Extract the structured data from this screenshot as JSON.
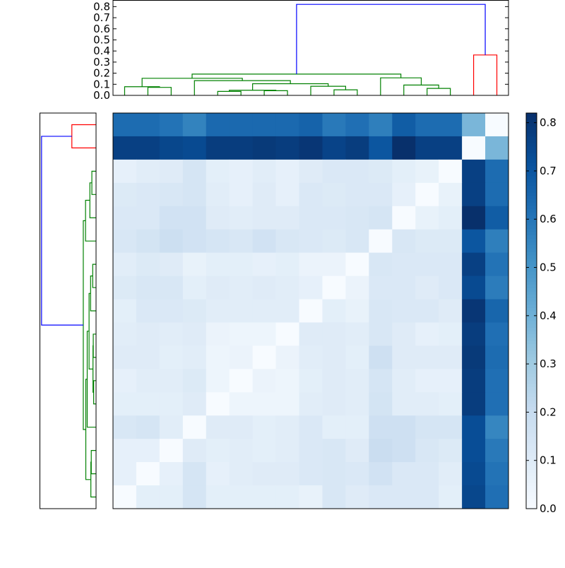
{
  "chart_data": {
    "type": "heatmap",
    "title": "",
    "colormap": "Blues",
    "vmin": 0.0,
    "vmax": 0.82,
    "colorbar_ticks": [
      "0.0",
      "0.1",
      "0.2",
      "0.3",
      "0.4",
      "0.5",
      "0.6",
      "0.7",
      "0.8"
    ],
    "dendrogram_ticks": [
      "0.0",
      "0.1",
      "0.2",
      "0.3",
      "0.4",
      "0.5",
      "0.6",
      "0.7",
      "0.8"
    ],
    "dendrogram_ylim": [
      0,
      0.85
    ],
    "dendrogram_colors": {
      "cluster1": "#008000",
      "cluster2": "#ff0000",
      "above_threshold": "#0000ff"
    },
    "dendrogram_links": [
      {
        "x": [
          1,
          2
        ],
        "child_h": [
          0,
          0
        ],
        "h": 0.072,
        "c": "cluster1"
      },
      {
        "x": [
          0,
          1.5
        ],
        "child_h": [
          0,
          0.072
        ],
        "h": 0.078,
        "c": "cluster1"
      },
      {
        "x": [
          4,
          5
        ],
        "child_h": [
          0,
          0
        ],
        "h": 0.036,
        "c": "cluster1"
      },
      {
        "x": [
          6,
          7
        ],
        "child_h": [
          0,
          0
        ],
        "h": 0.042,
        "c": "cluster1"
      },
      {
        "x": [
          4.5,
          6.5
        ],
        "child_h": [
          0.036,
          0.042
        ],
        "h": 0.046,
        "c": "cluster1"
      },
      {
        "x": [
          9,
          10
        ],
        "child_h": [
          0,
          0
        ],
        "h": 0.05,
        "c": "cluster1"
      },
      {
        "x": [
          8,
          9.5
        ],
        "child_h": [
          0,
          0.05
        ],
        "h": 0.082,
        "c": "cluster1"
      },
      {
        "x": [
          5.5,
          8.75
        ],
        "child_h": [
          0.046,
          0.082
        ],
        "h": 0.105,
        "c": "cluster1"
      },
      {
        "x": [
          3,
          7.125
        ],
        "child_h": [
          0,
          0.105
        ],
        "h": 0.133,
        "c": "cluster1"
      },
      {
        "x": [
          0.75,
          5.06
        ],
        "child_h": [
          0.078,
          0.133
        ],
        "h": 0.154,
        "c": "cluster1"
      },
      {
        "x": [
          13,
          14
        ],
        "child_h": [
          0,
          0
        ],
        "h": 0.063,
        "c": "cluster1"
      },
      {
        "x": [
          12,
          13.5
        ],
        "child_h": [
          0,
          0.063
        ],
        "h": 0.093,
        "c": "cluster1"
      },
      {
        "x": [
          11,
          12.75
        ],
        "child_h": [
          0,
          0.093
        ],
        "h": 0.158,
        "c": "cluster1"
      },
      {
        "x": [
          2.9,
          11.875
        ],
        "child_h": [
          0.154,
          0.158
        ],
        "h": 0.192,
        "c": "cluster1"
      },
      {
        "x": [
          15,
          16
        ],
        "child_h": [
          0,
          0
        ],
        "h": 0.364,
        "c": "cluster2"
      },
      {
        "x": [
          7.39,
          15.5
        ],
        "child_h": [
          0.192,
          0.364
        ],
        "h": 0.82,
        "c": "above_threshold"
      }
    ],
    "matrix": [
      [
        0.63,
        0.63,
        0.61,
        0.56,
        0.64,
        0.64,
        0.64,
        0.64,
        0.66,
        0.59,
        0.62,
        0.57,
        0.68,
        0.63,
        0.63,
        0.38,
        0.0
      ],
      [
        0.77,
        0.77,
        0.75,
        0.74,
        0.78,
        0.78,
        0.79,
        0.78,
        0.8,
        0.76,
        0.78,
        0.7,
        0.82,
        0.77,
        0.77,
        0.0,
        0.38
      ],
      [
        0.07,
        0.09,
        0.1,
        0.14,
        0.08,
        0.07,
        0.09,
        0.07,
        0.1,
        0.12,
        0.12,
        0.11,
        0.08,
        0.06,
        0.0,
        0.77,
        0.63
      ],
      [
        0.11,
        0.12,
        0.13,
        0.14,
        0.09,
        0.07,
        0.1,
        0.07,
        0.12,
        0.11,
        0.12,
        0.12,
        0.07,
        0.0,
        0.06,
        0.77,
        0.63
      ],
      [
        0.12,
        0.12,
        0.16,
        0.16,
        0.1,
        0.09,
        0.1,
        0.1,
        0.12,
        0.12,
        0.13,
        0.14,
        0.0,
        0.06,
        0.08,
        0.82,
        0.68
      ],
      [
        0.13,
        0.15,
        0.18,
        0.16,
        0.14,
        0.13,
        0.16,
        0.13,
        0.12,
        0.11,
        0.13,
        0.0,
        0.13,
        0.11,
        0.11,
        0.7,
        0.57
      ],
      [
        0.09,
        0.11,
        0.1,
        0.06,
        0.08,
        0.08,
        0.07,
        0.08,
        0.05,
        0.05,
        0.0,
        0.13,
        0.12,
        0.12,
        0.12,
        0.77,
        0.61
      ],
      [
        0.11,
        0.13,
        0.13,
        0.08,
        0.1,
        0.09,
        0.1,
        0.09,
        0.07,
        0.0,
        0.05,
        0.12,
        0.12,
        0.1,
        0.12,
        0.74,
        0.58
      ],
      [
        0.08,
        0.12,
        0.12,
        0.11,
        0.09,
        0.09,
        0.09,
        0.09,
        0.0,
        0.08,
        0.06,
        0.13,
        0.12,
        0.12,
        0.1,
        0.8,
        0.65
      ],
      [
        0.09,
        0.1,
        0.09,
        0.1,
        0.05,
        0.04,
        0.04,
        0.0,
        0.1,
        0.1,
        0.09,
        0.13,
        0.1,
        0.07,
        0.08,
        0.78,
        0.62
      ],
      [
        0.1,
        0.1,
        0.08,
        0.09,
        0.04,
        0.05,
        0.0,
        0.05,
        0.09,
        0.1,
        0.08,
        0.17,
        0.1,
        0.1,
        0.1,
        0.79,
        0.63
      ],
      [
        0.07,
        0.09,
        0.09,
        0.11,
        0.04,
        0.0,
        0.05,
        0.04,
        0.08,
        0.1,
        0.09,
        0.14,
        0.09,
        0.07,
        0.07,
        0.78,
        0.62
      ],
      [
        0.08,
        0.08,
        0.08,
        0.1,
        0.0,
        0.04,
        0.04,
        0.04,
        0.09,
        0.1,
        0.09,
        0.15,
        0.09,
        0.09,
        0.08,
        0.78,
        0.62
      ],
      [
        0.13,
        0.14,
        0.09,
        0.0,
        0.1,
        0.1,
        0.08,
        0.09,
        0.12,
        0.08,
        0.08,
        0.17,
        0.17,
        0.14,
        0.14,
        0.73,
        0.55
      ],
      [
        0.07,
        0.07,
        0.0,
        0.1,
        0.08,
        0.09,
        0.08,
        0.09,
        0.12,
        0.13,
        0.1,
        0.19,
        0.17,
        0.13,
        0.11,
        0.73,
        0.59
      ],
      [
        0.07,
        0.0,
        0.07,
        0.14,
        0.07,
        0.09,
        0.1,
        0.1,
        0.12,
        0.13,
        0.12,
        0.16,
        0.12,
        0.12,
        0.09,
        0.74,
        0.61
      ],
      [
        0.0,
        0.08,
        0.08,
        0.14,
        0.08,
        0.08,
        0.08,
        0.08,
        0.06,
        0.13,
        0.1,
        0.12,
        0.12,
        0.12,
        0.08,
        0.75,
        0.62
      ]
    ]
  }
}
